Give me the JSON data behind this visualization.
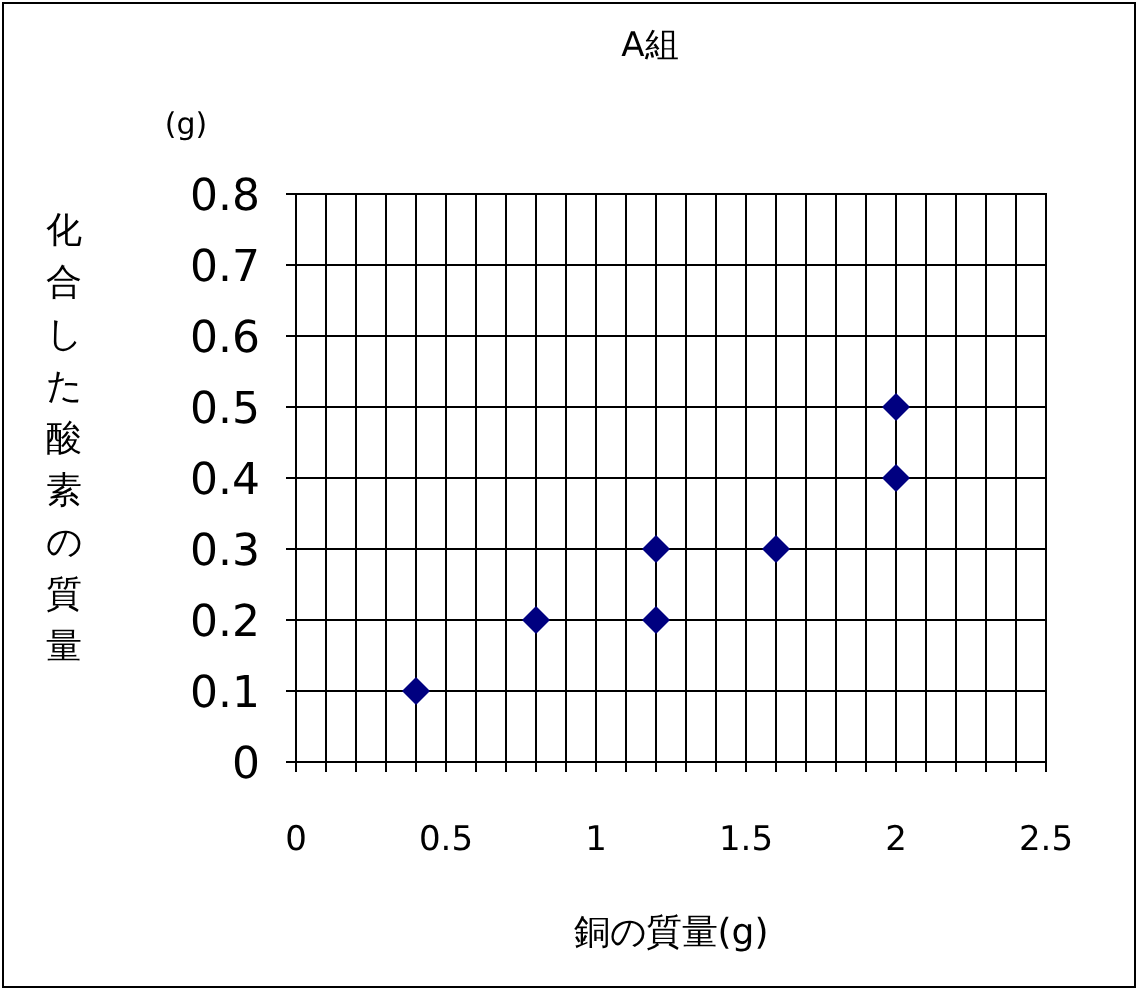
{
  "chart_data": {
    "type": "scatter",
    "title": "A組",
    "xlabel": "銅の質量(g)",
    "ylabel": "化合した酸素の質量",
    "annotations": [
      "(g)"
    ],
    "x": [
      0.4,
      0.8,
      1.2,
      1.2,
      1.6,
      2.0,
      2.0
    ],
    "series": [
      {
        "color": "#000080",
        "values": [
          0.1,
          0.2,
          0.3,
          0.2,
          0.3,
          0.5,
          0.4
        ]
      }
    ],
    "xlim": [
      0,
      2.5
    ],
    "xticks": [
      0,
      {
        "value": 0.1,
        "label": null
      },
      {
        "value": 0.2,
        "label": null
      },
      {
        "value": 0.3,
        "label": null
      },
      {
        "value": 0.4,
        "label": null
      },
      0.5,
      {
        "value": 0.6,
        "label": null
      },
      {
        "value": 0.7,
        "label": null
      },
      {
        "value": 0.8,
        "label": null
      },
      {
        "value": 0.9,
        "label": null
      },
      1,
      {
        "value": 1.1,
        "label": null
      },
      {
        "value": 1.2,
        "label": null
      },
      {
        "value": 1.3,
        "label": null
      },
      {
        "value": 1.4,
        "label": null
      },
      1.5,
      {
        "value": 1.6,
        "label": null
      },
      {
        "value": 1.7,
        "label": null
      },
      {
        "value": 1.8,
        "label": null
      },
      {
        "value": 1.9,
        "label": null
      },
      2,
      {
        "value": 2.1,
        "label": null
      },
      {
        "value": 2.2,
        "label": null
      },
      {
        "value": 2.3,
        "label": null
      },
      {
        "value": 2.4,
        "label": null
      },
      2.5
    ],
    "ylim": [
      0,
      0.8
    ],
    "yticks": [
      0,
      0.1,
      0.2,
      0.3,
      0.4,
      0.5,
      0.6,
      0.7,
      0.8
    ],
    "grid": true,
    "marker": "diamond"
  }
}
